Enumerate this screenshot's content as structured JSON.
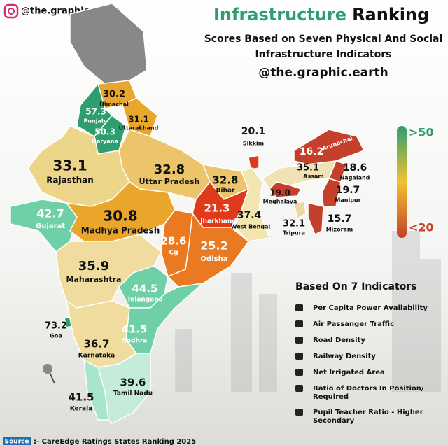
{
  "header": {
    "handle": "@the.graphic.earth",
    "title_part1": "Infrastructure",
    "title_part2": "Ranking",
    "subtitle_lines": [
      "Scores Based on Seven Physical And Social",
      "Infrastructure Indicators"
    ],
    "credit": "@the.graphic.earth"
  },
  "states": [
    {
      "name": "Himachal",
      "score": "30.2",
      "color": "#e9a62a"
    },
    {
      "name": "Punjab",
      "score": "57.3",
      "color": "#2f9e6f"
    },
    {
      "name": "Haryana",
      "score": "50.3",
      "color": "#2f9e6f"
    },
    {
      "name": "Uttarakhand",
      "score": "31.1",
      "color": "#e9a62a"
    },
    {
      "name": "Rajasthan",
      "score": "33.1",
      "color": "#ecd489"
    },
    {
      "name": "Uttar Pradesh",
      "score": "32.8",
      "color": "#ecc46a"
    },
    {
      "name": "Bihar",
      "score": "32.8",
      "color": "#ecc46a"
    },
    {
      "name": "Sikkim",
      "score": "20.1",
      "color": "#df3b1b"
    },
    {
      "name": "Arunachal",
      "score": "16.2",
      "color": "#c4402a"
    },
    {
      "name": "Assam",
      "score": "35.1",
      "color": "#f1e2b5"
    },
    {
      "name": "Nagaland",
      "score": "18.6",
      "color": "#c4402a"
    },
    {
      "name": "Manipur",
      "score": "19.7",
      "color": "#c4402a"
    },
    {
      "name": "Meghalaya",
      "score": "19.0",
      "color": "#c4402a"
    },
    {
      "name": "Tripura",
      "score": "32.1",
      "color": "#ecd8a0"
    },
    {
      "name": "Mizoram",
      "score": "15.7",
      "color": "#c4402a"
    },
    {
      "name": "Jharkhand",
      "score": "21.3",
      "color": "#e03a1a"
    },
    {
      "name": "West Bengal",
      "score": "37.4",
      "color": "#f3e5b0"
    },
    {
      "name": "Gujarat",
      "score": "42.7",
      "color": "#6fcfa6"
    },
    {
      "name": "Madhya Pradesh",
      "score": "30.8",
      "color": "#e9a62a"
    },
    {
      "name": "Cg",
      "score": "28.6",
      "color": "#e97a22"
    },
    {
      "name": "Odisha",
      "score": "25.2",
      "color": "#e97a22"
    },
    {
      "name": "Maharashtra",
      "score": "35.9",
      "color": "#f0dc9e"
    },
    {
      "name": "Telangana",
      "score": "44.5",
      "color": "#6fcfa6"
    },
    {
      "name": "Goa",
      "score": "73.2",
      "color": "#2f9e6f"
    },
    {
      "name": "Andhra",
      "score": "41.5",
      "color": "#6fcfa6"
    },
    {
      "name": "Karnataka",
      "score": "36.7",
      "color": "#f0dc9e"
    },
    {
      "name": "Tamil Nadu",
      "score": "39.6",
      "color": "#c5ecd9"
    },
    {
      "name": "Kerala",
      "score": "41.5",
      "color": "#a8e6cc"
    }
  ],
  "legend": {
    "high": ">50",
    "low": "<20",
    "high_color": "#2f9e6f",
    "low_color": "#c4402a"
  },
  "indicators": {
    "title": "Based On 7 Indicators",
    "items": [
      [
        "Per Capita Power Availability"
      ],
      [
        "Air Passanger Traffic"
      ],
      [
        "Road Density"
      ],
      [
        "Railway Density"
      ],
      [
        "Net Irrigated Area"
      ],
      [
        "Ratio of Doctors In Position/",
        "Required"
      ],
      [
        "Pupil Teacher Ratio - Higher",
        "Secondary"
      ]
    ]
  },
  "source": {
    "label": "Source",
    "text": ":- CareEdge Ratings States Ranking 2025"
  }
}
